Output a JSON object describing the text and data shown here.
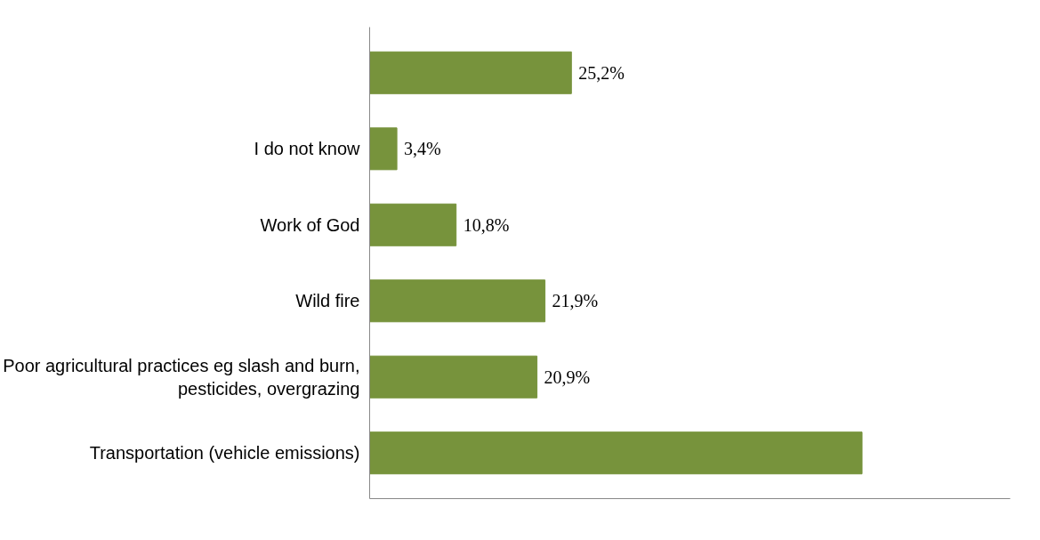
{
  "chart_data": {
    "type": "bar",
    "orientation": "horizontal",
    "categories": [
      null,
      "I do not know",
      "Work of God",
      "Wild fire",
      "Poor agricultural practices eg slash and burn, pesticides, overgrazing",
      "Transportation (vehicle emissions)"
    ],
    "values": [
      25.2,
      3.4,
      10.8,
      21.9,
      20.9,
      61.5
    ],
    "value_labels": [
      "25,2%",
      "3,4%",
      "10,8%",
      "21,9%",
      "20,9%",
      null
    ],
    "color": "#77933c",
    "xlim": [
      0,
      80
    ],
    "tick_labels": "y"
  }
}
